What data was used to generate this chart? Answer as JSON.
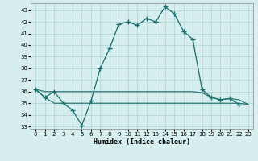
{
  "title": "",
  "xlabel": "Humidex (Indice chaleur)",
  "background_color": "#d6eeee",
  "grid_color": "#b0d4d4",
  "line_color": "#1a6b6b",
  "xlim": [
    -0.5,
    23.5
  ],
  "ylim": [
    32.8,
    43.6
  ],
  "yticks": [
    33,
    34,
    35,
    36,
    37,
    38,
    39,
    40,
    41,
    42,
    43
  ],
  "xticks": [
    0,
    1,
    2,
    3,
    4,
    5,
    6,
    7,
    8,
    9,
    10,
    11,
    12,
    13,
    14,
    15,
    16,
    17,
    18,
    19,
    20,
    21,
    22,
    23
  ],
  "series1_x": [
    0,
    1,
    2,
    3,
    4,
    5,
    6,
    7,
    8,
    9,
    10,
    11,
    12,
    13,
    14,
    15,
    16,
    17,
    18,
    19,
    20,
    21,
    22
  ],
  "series1_y": [
    36.2,
    35.5,
    36.0,
    35.0,
    34.4,
    33.1,
    35.2,
    38.0,
    39.7,
    41.8,
    42.0,
    41.7,
    42.3,
    42.0,
    43.3,
    42.7,
    41.2,
    40.5,
    36.2,
    35.5,
    35.3,
    35.4,
    34.9
  ],
  "series2_x": [
    0,
    1,
    2,
    3,
    4,
    5,
    6,
    7,
    8,
    9,
    10,
    11,
    12,
    13,
    14,
    15,
    16,
    17,
    18,
    19,
    20,
    21,
    22,
    23
  ],
  "series2_y": [
    36.2,
    36.0,
    36.0,
    36.0,
    36.0,
    36.0,
    36.0,
    36.0,
    36.0,
    36.0,
    36.0,
    36.0,
    36.0,
    36.0,
    36.0,
    36.0,
    36.0,
    36.0,
    35.9,
    35.5,
    35.3,
    35.4,
    35.3,
    34.9
  ],
  "series3_x": [
    0,
    1,
    2,
    3,
    4,
    5,
    6,
    7,
    8,
    9,
    10,
    11,
    12,
    13,
    14,
    15,
    16,
    17,
    18,
    19,
    20,
    21,
    22,
    23
  ],
  "series3_y": [
    36.2,
    35.5,
    35.0,
    35.0,
    35.0,
    35.0,
    35.0,
    35.0,
    35.0,
    35.0,
    35.0,
    35.0,
    35.0,
    35.0,
    35.0,
    35.0,
    35.0,
    35.0,
    35.0,
    35.0,
    35.0,
    35.0,
    35.0,
    34.9
  ]
}
